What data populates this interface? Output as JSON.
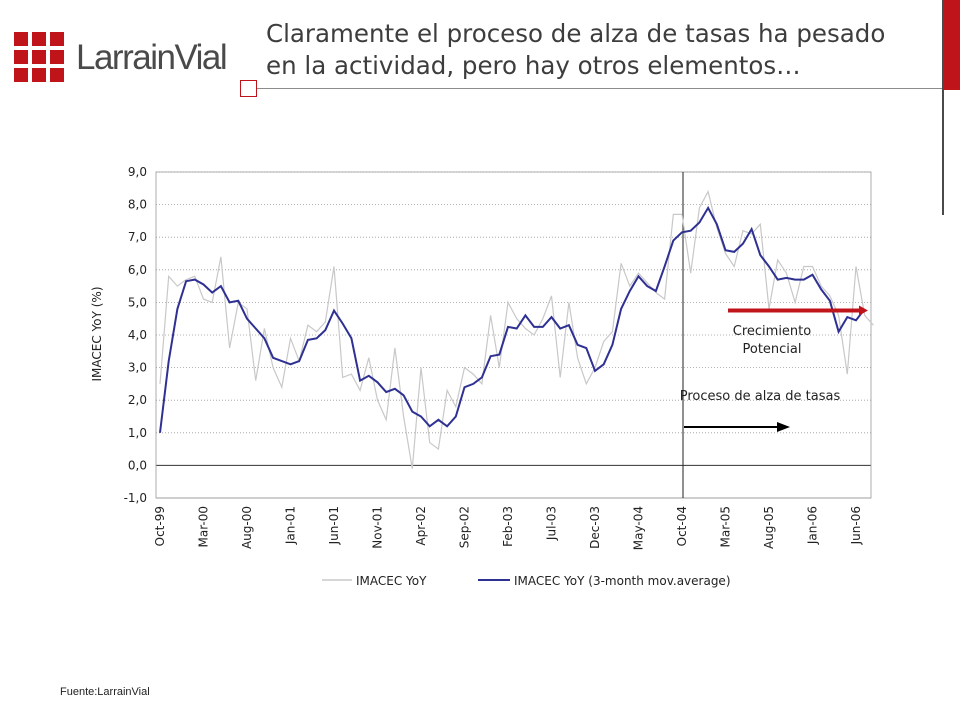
{
  "brand": {
    "name": "LarrainVial",
    "color": "#c0141b"
  },
  "slide": {
    "title_line1": "Claramente el proceso de alza de tasas ha pesado",
    "title_line2": "en la actividad, pero hay otros elementos…",
    "source": "Fuente:LarrainVial"
  },
  "chart_data": {
    "type": "line",
    "ylabel": "IMACEC YoY (%)",
    "ylim": [
      -1,
      9
    ],
    "yticks": [
      "9,0",
      "8,0",
      "7,0",
      "6,0",
      "5,0",
      "4,0",
      "3,0",
      "2,0",
      "1,0",
      "0,0",
      "-1,0"
    ],
    "x_tick_labels": [
      "Oct-99",
      "Mar-00",
      "Aug-00",
      "Jan-01",
      "Jun-01",
      "Nov-01",
      "Apr-02",
      "Sep-02",
      "Feb-03",
      "Jul-03",
      "Dec-03",
      "May-04",
      "Oct-04",
      "Mar-05",
      "Aug-05",
      "Jan-06",
      "Jun-06"
    ],
    "x_start": "Oct-99",
    "grid": true,
    "legend_position": "bottom",
    "series": [
      {
        "name": "IMACEC YoY",
        "color": "#c8c8c8",
        "values": [
          2.5,
          5.8,
          5.5,
          5.7,
          5.8,
          5.1,
          5.0,
          6.4,
          3.6,
          5.0,
          4.8,
          2.6,
          4.2,
          3.0,
          2.4,
          3.9,
          3.2,
          4.3,
          4.1,
          4.4,
          6.1,
          2.7,
          2.8,
          2.3,
          3.3,
          2.0,
          1.4,
          3.6,
          1.5,
          -0.1,
          3.0,
          0.7,
          0.5,
          2.3,
          1.8,
          3.0,
          2.8,
          2.5,
          4.6,
          3.0,
          5.0,
          4.5,
          4.2,
          4.0,
          4.5,
          5.2,
          2.7,
          5.0,
          3.3,
          2.5,
          3.0,
          3.8,
          4.1,
          6.2,
          5.5,
          5.9,
          5.6,
          5.3,
          5.1,
          7.7,
          7.7,
          5.9,
          7.9,
          8.4,
          7.3,
          6.5,
          6.1,
          7.2,
          7.1,
          7.4,
          4.8,
          6.3,
          5.9,
          5.0,
          6.1,
          6.1,
          5.5,
          5.2,
          4.6,
          2.8,
          6.1,
          4.6,
          4.3
        ]
      },
      {
        "name": "IMACEC YoY (3-month mov.average)",
        "color": "#2e3192",
        "values": [
          1.0,
          3.2,
          4.8,
          5.65,
          5.7,
          5.55,
          5.3,
          5.5,
          5.0,
          5.05,
          4.5,
          4.2,
          3.9,
          3.3,
          3.2,
          3.1,
          3.2,
          3.85,
          3.9,
          4.15,
          4.75,
          4.35,
          3.9,
          2.6,
          2.75,
          2.55,
          2.25,
          2.35,
          2.15,
          1.65,
          1.5,
          1.2,
          1.4,
          1.2,
          1.5,
          2.4,
          2.5,
          2.7,
          3.35,
          3.4,
          4.25,
          4.2,
          4.6,
          4.25,
          4.25,
          4.55,
          4.2,
          4.3,
          3.7,
          3.6,
          2.9,
          3.1,
          3.7,
          4.8,
          5.35,
          5.8,
          5.5,
          5.35,
          6.1,
          6.9,
          7.15,
          7.2,
          7.45,
          7.9,
          7.4,
          6.6,
          6.55,
          6.8,
          7.25,
          6.45,
          6.1,
          5.7,
          5.75,
          5.7,
          5.7,
          5.85,
          5.4,
          5.05,
          4.1,
          4.55,
          4.45,
          4.8
        ]
      }
    ],
    "reference_line": {
      "x": "Oct-04"
    },
    "potential_growth": {
      "value": 4.75,
      "color": "#c0141b",
      "label_line1": "Crecimiento",
      "label_line2": "Potencial"
    },
    "annotation": {
      "text": "Proceso de alza de tasas"
    }
  }
}
